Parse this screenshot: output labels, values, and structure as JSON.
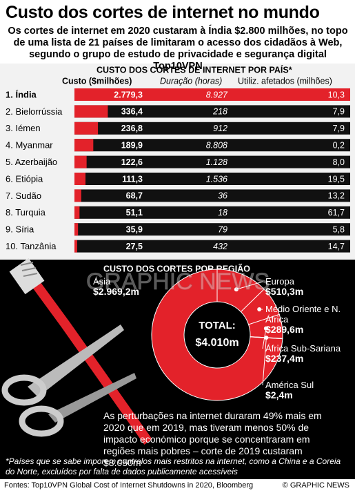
{
  "title": "Custo dos cortes de internet no mundo",
  "subtitle": "Os cortes de internet em 2020 custaram à Índia $2.800 milhões, no topo de uma lista de 21 países de limitaram o acesso dos cidadãos à Web, segundo o grupo de estudo de privacidade e segurança digital Top10VPN",
  "chart_data": [
    {
      "type": "bar",
      "title": "CUSTO DOS CORTES DE INTERNET POR PAÍS*",
      "categories": [
        "1. Índia",
        "2. Bielorrússia",
        "3. Iémen",
        "4. Myanmar",
        "5. Azerbaijão",
        "6. Etiópia",
        "7. Sudão",
        "8. Turquia",
        "9. Síria",
        "10. Tanzânia"
      ],
      "series": [
        {
          "name": "Custo ($milhões)",
          "color": "#e3222a",
          "values": [
            2779.3,
            336.4,
            236.8,
            189.9,
            122.6,
            111.3,
            68.7,
            51.1,
            35.9,
            27.5
          ],
          "value_labels": [
            "2.779,3",
            "336,4",
            "236,8",
            "189,9",
            "122,6",
            "111,3",
            "68,7",
            "51,1",
            "35,9",
            "27,5"
          ]
        },
        {
          "name": "Duração (horas)",
          "values": [
            8927,
            218,
            912,
            8808,
            1128,
            1536,
            36,
            18,
            79,
            432
          ],
          "value_labels": [
            "8.927",
            "218",
            "912",
            "8.808",
            "1.128",
            "1.536",
            "36",
            "18",
            "79",
            "432"
          ]
        },
        {
          "name": "Utiliz. afetados (milhões)",
          "values": [
            10.3,
            7.9,
            7.9,
            0.2,
            8.0,
            19.5,
            13.2,
            61.7,
            5.8,
            14.7
          ],
          "value_labels": [
            "10,3",
            "7,9",
            "7,9",
            "0,2",
            "8,0",
            "19,5",
            "13,2",
            "61,7",
            "5,8",
            "14,7"
          ]
        }
      ]
    },
    {
      "type": "pie",
      "title": "CUSTO DOS CORTES POR REGIÃO",
      "center_label": "TOTAL:",
      "center_value": "$4.010m",
      "color": "#e3222a",
      "categories": [
        "Ásia",
        "Europa",
        "Médio Oriente e N. África",
        "África Sub-Sariana",
        "América Sul"
      ],
      "values": [
        2969.2,
        510.3,
        289.6,
        237.4,
        2.4
      ],
      "value_labels": [
        "$2.969,2m",
        "$510,3m",
        "$289,6m",
        "$237,4m",
        "$2,4m"
      ]
    }
  ],
  "note": "As perturbações na internet duraram 49% mais em 2020 que em 2019, mas tiveram menos 50% de impacto económico porque se concentraram em regiões mais pobres – corte de 2019 custaram $8.050m",
  "footnote": "*Países que se sabe imporem controlos mais restritos na internet, como a China e a Coreia do Norte, excluídos por falta de dados publicamente acessíveis",
  "source": "Fontes: Top10VPN Global Cost of Internet Shutdowns in 2020, Bloomberg",
  "credit": "© GRAPHIC NEWS",
  "watermark": "GRAPHIC NEWS"
}
